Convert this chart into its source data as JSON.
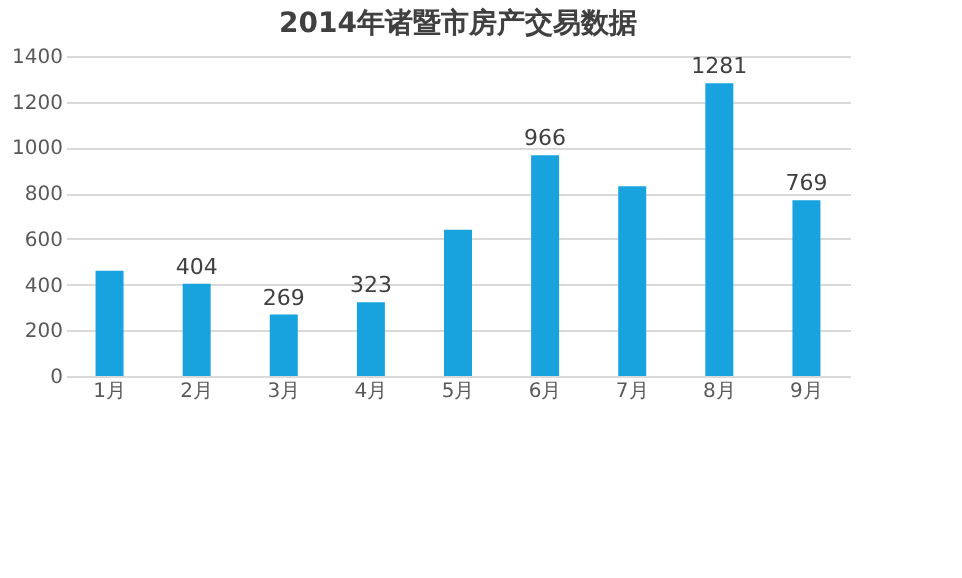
{
  "chart_data": {
    "type": "bar",
    "title": "2014年诸暨市房产交易数据",
    "categories": [
      "1月",
      "2月",
      "3月",
      "4月",
      "5月",
      "6月",
      "7月",
      "8月",
      "9月"
    ],
    "values": [
      460,
      404,
      269,
      323,
      640,
      966,
      830,
      1281,
      769
    ],
    "value_labels": [
      null,
      "404",
      "269",
      "323",
      null,
      "966",
      null,
      "1281",
      "769"
    ],
    "color": "#18a3df",
    "ylim": [
      0,
      1400
    ],
    "yticks": [
      0,
      200,
      400,
      600,
      800,
      1000,
      1200,
      1400
    ],
    "grid": "y"
  }
}
